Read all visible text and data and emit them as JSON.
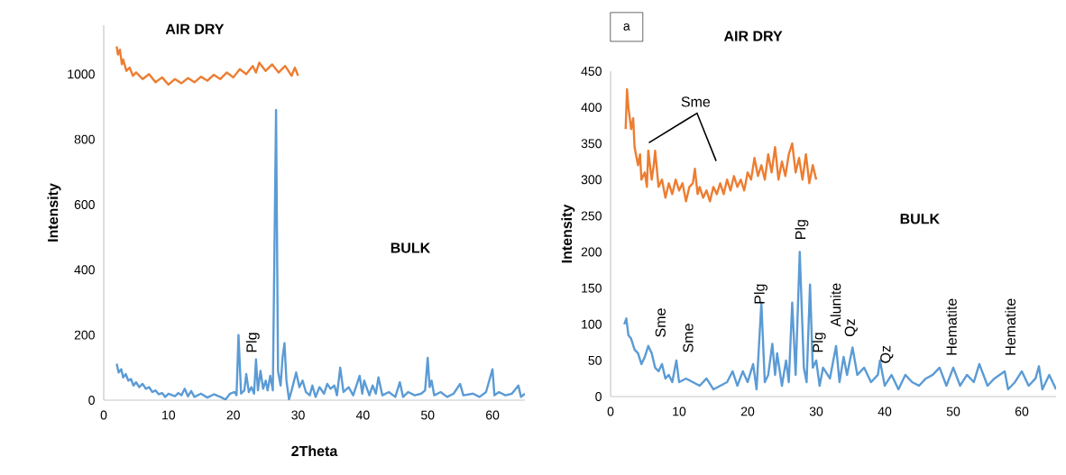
{
  "chart_data": [
    {
      "type": "line",
      "xlabel": "2Theta",
      "ylabel": "Intensity",
      "xlim": [
        0,
        65
      ],
      "ylim": [
        0,
        1150
      ],
      "xticks": [
        0,
        10,
        20,
        30,
        40,
        50,
        60
      ],
      "yticks": [
        0,
        200,
        400,
        600,
        800,
        1000
      ],
      "grid": false,
      "legend": false,
      "marker": "none",
      "line_style": "solid",
      "series": [
        {
          "color": "#ed7d31",
          "x": [
            2,
            2.2,
            2.5,
            2.8,
            3,
            3.5,
            4,
            4.5,
            5,
            6,
            7,
            8,
            9,
            10,
            11,
            12,
            13,
            14,
            15,
            16,
            17,
            18,
            19,
            20,
            21,
            22,
            23,
            23.5,
            24,
            25,
            26,
            27,
            28,
            29,
            29.5,
            30
          ],
          "values": [
            1085,
            1060,
            1075,
            1030,
            1045,
            1010,
            1020,
            995,
            1005,
            985,
            1000,
            975,
            990,
            968,
            985,
            972,
            988,
            975,
            992,
            980,
            998,
            985,
            1005,
            990,
            1015,
            1000,
            1025,
            1005,
            1035,
            1010,
            1030,
            1005,
            1025,
            995,
            1020,
            995
          ]
        },
        {
          "color": "#5b9bd5",
          "x": [
            2,
            2.3,
            2.7,
            3,
            3.4,
            3.8,
            4.2,
            4.6,
            5,
            5.5,
            6,
            6.5,
            7,
            7.5,
            8,
            8.5,
            9,
            9.5,
            10,
            11,
            11.5,
            12,
            12.5,
            13,
            13.5,
            14,
            15,
            16,
            17,
            18,
            18.8,
            19.5,
            20.2,
            20.5,
            20.8,
            21.2,
            21.7,
            22,
            22.4,
            22.8,
            23.2,
            23.5,
            23.8,
            24.2,
            24.6,
            25,
            25.3,
            25.7,
            26.1,
            26.6,
            26.9,
            27.3,
            27.6,
            27.9,
            28.2,
            28.6,
            29,
            29.7,
            30.2,
            30.7,
            31.2,
            31.8,
            32.2,
            32.7,
            33.3,
            34,
            34.5,
            35,
            35.6,
            36,
            36.5,
            37,
            37.8,
            38.5,
            39.5,
            39.9,
            40.2,
            41,
            41.5,
            42,
            42.4,
            43,
            44,
            45,
            45.7,
            46.2,
            47,
            48,
            49,
            49.6,
            50,
            50.3,
            50.6,
            51,
            52,
            53,
            54,
            55,
            55.5,
            57,
            58,
            59,
            60,
            60.3,
            61,
            62,
            63,
            64,
            64.4,
            65
          ],
          "values": [
            112,
            85,
            95,
            70,
            80,
            60,
            65,
            45,
            55,
            40,
            50,
            35,
            40,
            25,
            30,
            18,
            22,
            10,
            20,
            12,
            22,
            15,
            35,
            12,
            28,
            10,
            20,
            8,
            18,
            10,
            2,
            20,
            25,
            15,
            200,
            20,
            30,
            80,
            25,
            40,
            20,
            125,
            30,
            90,
            35,
            60,
            30,
            75,
            30,
            890,
            90,
            45,
            130,
            175,
            60,
            2,
            30,
            85,
            40,
            60,
            25,
            15,
            45,
            10,
            40,
            20,
            50,
            35,
            45,
            15,
            100,
            25,
            40,
            15,
            75,
            20,
            60,
            15,
            45,
            20,
            70,
            15,
            25,
            10,
            55,
            10,
            25,
            15,
            20,
            30,
            130,
            40,
            60,
            15,
            25,
            10,
            20,
            50,
            15,
            20,
            10,
            25,
            95,
            15,
            25,
            15,
            20,
            45,
            10,
            20
          ]
        }
      ],
      "annotations": [
        "AIR DRY",
        "BULK",
        "Plg"
      ]
    },
    {
      "type": "line",
      "ylabel": "Intensity",
      "xlim": [
        0,
        65
      ],
      "ylim": [
        0,
        450
      ],
      "xticks": [
        0,
        10,
        20,
        30,
        40,
        50,
        60
      ],
      "yticks": [
        0,
        50,
        100,
        150,
        200,
        250,
        300,
        350,
        400,
        450
      ],
      "grid": false,
      "legend": false,
      "marker": "none",
      "line_style": "solid",
      "series": [
        {
          "color": "#ed7d31",
          "x": [
            2.2,
            2.4,
            2.6,
            3,
            3.3,
            3.5,
            4,
            4.3,
            4.5,
            5,
            5.3,
            5.5,
            6,
            6.3,
            6.5,
            7,
            7.5,
            8,
            8.5,
            9,
            9.5,
            10,
            10.5,
            11,
            11.5,
            12,
            12.3,
            12.7,
            13,
            13.5,
            14,
            14.5,
            15,
            15.5,
            16,
            16.5,
            17,
            17.5,
            18,
            18.5,
            19,
            19.5,
            20,
            20.5,
            21,
            21.5,
            22,
            22.5,
            23,
            23.5,
            24,
            24.5,
            25,
            25.5,
            26,
            26.5,
            27,
            27.5,
            28,
            28.5,
            29,
            29.5,
            30
          ],
          "values": [
            370,
            425,
            400,
            370,
            385,
            345,
            320,
            335,
            300,
            310,
            290,
            340,
            300,
            320,
            340,
            290,
            300,
            275,
            295,
            280,
            300,
            285,
            295,
            270,
            290,
            295,
            315,
            280,
            290,
            275,
            285,
            270,
            290,
            280,
            295,
            280,
            300,
            285,
            305,
            290,
            300,
            285,
            310,
            300,
            330,
            305,
            320,
            300,
            335,
            310,
            345,
            300,
            325,
            305,
            335,
            350,
            310,
            330,
            300,
            335,
            295,
            320,
            300
          ]
        },
        {
          "color": "#5b9bd5",
          "x": [
            2,
            2.3,
            2.6,
            3,
            3.5,
            4,
            4.5,
            5,
            5.5,
            6,
            6.5,
            7,
            7.5,
            8,
            8.5,
            9,
            9.6,
            10,
            11,
            12,
            13,
            14,
            15,
            16,
            17,
            17.8,
            18.5,
            19.3,
            20,
            20.8,
            21.3,
            22,
            22.5,
            23,
            23.6,
            24,
            24.3,
            25,
            25.6,
            26,
            26.5,
            27,
            27.6,
            28.2,
            28.6,
            29.1,
            29.5,
            30,
            30.5,
            31,
            32,
            32.9,
            33.4,
            34,
            34.5,
            35.3,
            36,
            37,
            38,
            39,
            39.3,
            40,
            41,
            42,
            43,
            44,
            45,
            46,
            47,
            48,
            49,
            50,
            51,
            52,
            53,
            53.8,
            55,
            56,
            57.5,
            58,
            59,
            60,
            61,
            62,
            62.5,
            63,
            64,
            65
          ],
          "values": [
            100,
            108,
            85,
            80,
            65,
            60,
            45,
            55,
            70,
            60,
            40,
            35,
            45,
            25,
            30,
            20,
            50,
            20,
            25,
            20,
            15,
            25,
            10,
            15,
            20,
            35,
            15,
            35,
            20,
            45,
            10,
            130,
            20,
            30,
            73,
            30,
            60,
            15,
            50,
            20,
            130,
            30,
            200,
            40,
            20,
            155,
            40,
            50,
            15,
            40,
            25,
            70,
            20,
            55,
            30,
            68,
            30,
            40,
            20,
            30,
            50,
            15,
            30,
            10,
            30,
            20,
            15,
            25,
            30,
            40,
            15,
            40,
            15,
            30,
            20,
            45,
            15,
            25,
            35,
            10,
            20,
            35,
            15,
            25,
            42,
            10,
            30,
            10
          ]
        }
      ],
      "annotations": [
        "a",
        "AIR DRY",
        "BULK",
        "Sme",
        "Sme",
        "Sme",
        "Plg",
        "Plg",
        "Plg",
        "Alunite",
        "Qz",
        "Qz",
        "Hematite",
        "Hematite"
      ]
    }
  ]
}
